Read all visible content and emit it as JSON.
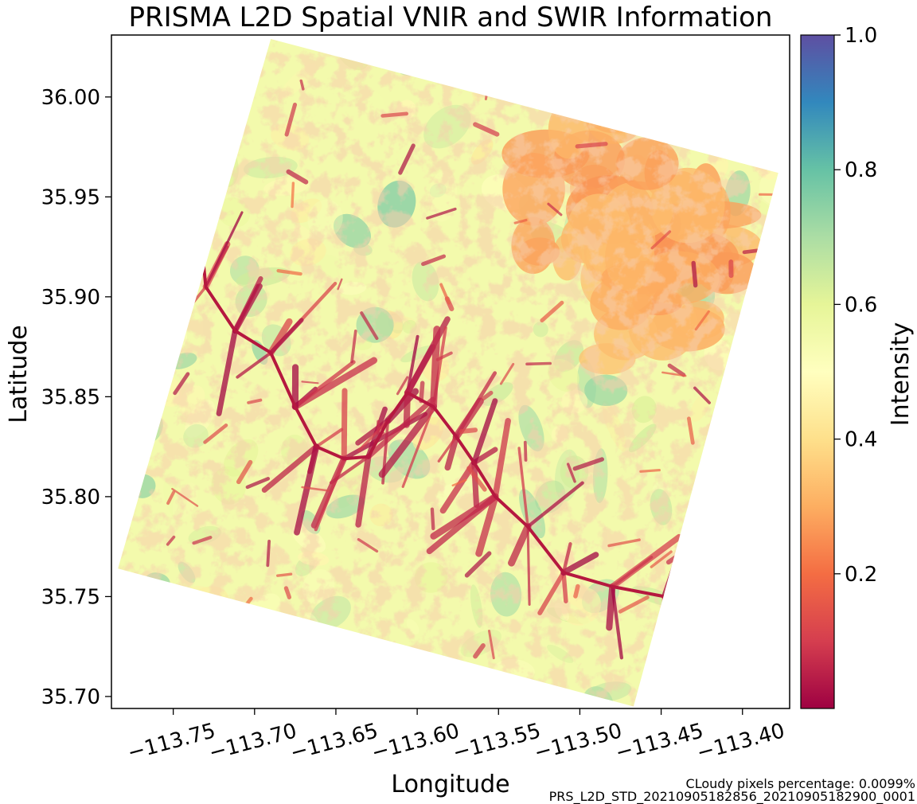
{
  "chart_data": {
    "type": "heatmap",
    "title": "PRISMA L2D Spatial VNIR and SWIR Information",
    "xlabel": "Longitude",
    "ylabel": "Latitude",
    "xlim": [
      -113.788,
      -113.371
    ],
    "ylim": [
      35.694,
      36.031
    ],
    "x_ticks": [
      -113.75,
      -113.7,
      -113.65,
      -113.6,
      -113.55,
      -113.5,
      -113.45,
      -113.4
    ],
    "x_tick_labels": [
      "−113.75",
      "−113.70",
      "−113.65",
      "−113.60",
      "−113.55",
      "−113.50",
      "−113.45",
      "−113.40"
    ],
    "y_ticks": [
      35.7,
      35.75,
      35.8,
      35.85,
      35.9,
      35.95,
      36.0
    ],
    "y_tick_labels": [
      "35.70",
      "35.75",
      "35.80",
      "35.85",
      "35.90",
      "35.95",
      "36.00"
    ],
    "colorbar": {
      "label": "Intensity",
      "colormap": "Spectral",
      "range": [
        0.0,
        1.0
      ],
      "ticks": [
        0.2,
        0.4,
        0.6,
        0.8,
        1.0
      ],
      "tick_labels": [
        "0.2",
        "0.4",
        "0.6",
        "0.8",
        "1.0"
      ]
    },
    "scene_corners_lonlat": [
      [
        -113.69,
        36.029
      ],
      [
        -113.378,
        35.962
      ],
      [
        -113.467,
        35.695
      ],
      [
        -113.784,
        35.764
      ]
    ],
    "river_path_lonlat": [
      [
        -113.735,
        35.947
      ],
      [
        -113.73,
        35.905
      ],
      [
        -113.712,
        35.883
      ],
      [
        -113.69,
        35.872
      ],
      [
        -113.675,
        35.845
      ],
      [
        -113.662,
        35.825
      ],
      [
        -113.645,
        35.819
      ],
      [
        -113.63,
        35.82
      ],
      [
        -113.618,
        35.838
      ],
      [
        -113.606,
        35.852
      ],
      [
        -113.59,
        35.845
      ],
      [
        -113.576,
        35.83
      ],
      [
        -113.565,
        35.817
      ],
      [
        -113.552,
        35.8
      ],
      [
        -113.532,
        35.785
      ],
      [
        -113.51,
        35.762
      ],
      [
        -113.48,
        35.755
      ],
      [
        -113.448,
        35.75
      ]
    ],
    "plateau_lonlat": [
      -113.47,
      35.93
    ]
  },
  "footer": {
    "line1": "CLoudy pixels percentage: 0.0099%",
    "line2": "PRS_L2D_STD_20210905182856_20210905182900_0001"
  },
  "colors": {
    "colormap_stops": [
      "#9e0142",
      "#d53e4f",
      "#f46d43",
      "#fdae61",
      "#fee08b",
      "#ffffbf",
      "#e6f598",
      "#abdda4",
      "#66c2a5",
      "#3288bd",
      "#5e4fa2"
    ]
  }
}
